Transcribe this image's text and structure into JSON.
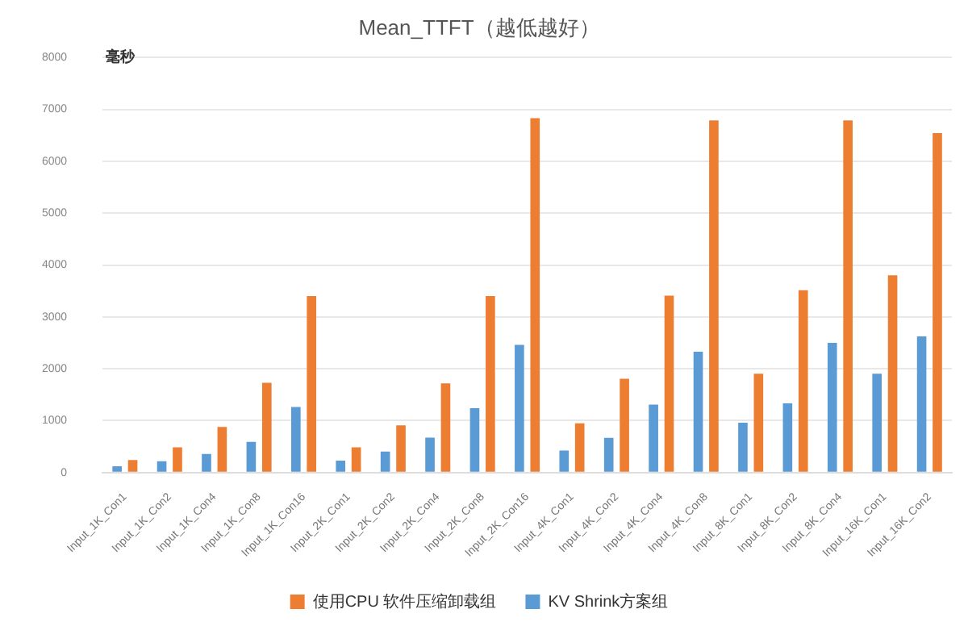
{
  "chart_data": {
    "type": "bar",
    "title": "Mean_TTFT（越低越好）",
    "ylabel": "毫秒",
    "categories": [
      "Input_1K_Con1",
      "Input_1K_Con2",
      "Input_1K_Con4",
      "Input_1K_Con8",
      "Input_1K_Con16",
      "Input_2K_Con1",
      "Input_2K_Con2",
      "Input_2K_Con4",
      "Input_2K_Con8",
      "Input_2K_Con16",
      "Input_4K_Con1",
      "Input_4K_Con2",
      "Input_4K_Con4",
      "Input_4K_Con8",
      "Input_8K_Con1",
      "Input_8K_Con2",
      "Input_8K_Con4",
      "Input_16K_Con1",
      "Input_16K_Con2"
    ],
    "series": [
      {
        "name": "KV Shrink方案组",
        "color": "#5b9bd5",
        "values": [
          120,
          220,
          360,
          590,
          1265,
          230,
          405,
          675,
          1240,
          2460,
          425,
          670,
          1310,
          2330,
          960,
          1335,
          2500,
          1905,
          2625
        ]
      },
      {
        "name": "使用CPU 软件压缩卸载组",
        "color": "#ed7d31",
        "values": [
          240,
          485,
          880,
          1730,
          3400,
          485,
          910,
          1720,
          3400,
          6830,
          950,
          1810,
          3410,
          6785,
          1905,
          3515,
          6785,
          3800,
          6540
        ]
      }
    ],
    "ylim": [
      0,
      8000
    ],
    "yticks": [
      0,
      1000,
      2000,
      3000,
      4000,
      5000,
      6000,
      7000,
      8000
    ],
    "grid": "y",
    "legend": "bottom"
  }
}
